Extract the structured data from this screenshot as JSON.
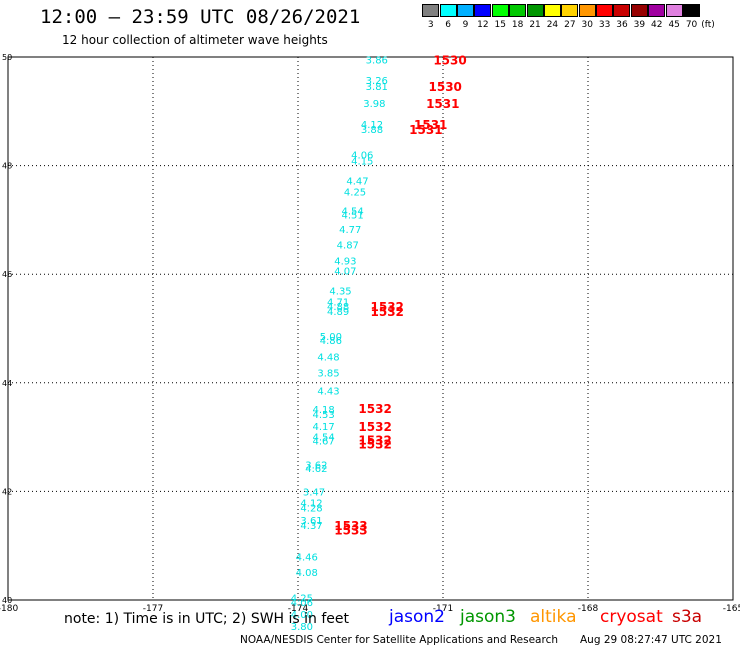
{
  "header": {
    "title": "12:00 — 23:59 UTC 08/26/2021",
    "subtitle": "12 hour collection of altimeter wave heights"
  },
  "legend": {
    "unit": "(ft)",
    "items": [
      {
        "label": "3",
        "color": "#808080"
      },
      {
        "label": "6",
        "color": "#00ffff"
      },
      {
        "label": "9",
        "color": "#00b0ff"
      },
      {
        "label": "12",
        "color": "#0000ff"
      },
      {
        "label": "15",
        "color": "#00ff00"
      },
      {
        "label": "18",
        "color": "#00c800"
      },
      {
        "label": "21",
        "color": "#009600"
      },
      {
        "label": "24",
        "color": "#ffff00"
      },
      {
        "label": "27",
        "color": "#ffd200"
      },
      {
        "label": "30",
        "color": "#ff9600"
      },
      {
        "label": "33",
        "color": "#ff0000"
      },
      {
        "label": "36",
        "color": "#c80000"
      },
      {
        "label": "39",
        "color": "#960000"
      },
      {
        "label": "42",
        "color": "#a000a0"
      },
      {
        "label": "45",
        "color": "#e080e0"
      },
      {
        "label": "70",
        "color": "#000000"
      }
    ]
  },
  "footer": {
    "note": "note: 1) Time is in UTC; 2) SWH is in feet",
    "satellites": [
      {
        "label": "jason2",
        "color": "#0000ff"
      },
      {
        "label": "jason3",
        "color": "#009600"
      },
      {
        "label": "altika",
        "color": "#ff9600"
      },
      {
        "label": "cryosat",
        "color": "#ff0000"
      },
      {
        "label": "s3a",
        "color": "#c80000"
      }
    ],
    "credit": "NOAA/NESDIS Center for Satellite Applications and Research",
    "timestamp": "Aug 29 08:27:47 UTC 2021"
  },
  "chart_data": {
    "type": "scatter",
    "title": "12:00 — 23:59 UTC 08/26/2021",
    "subtitle": "12 hour collection of altimeter wave heights",
    "xlim": [
      -180,
      -165
    ],
    "ylim": [
      40,
      50
    ],
    "x_ticks": [
      "-180",
      "-177",
      "-174",
      "-171",
      "-168",
      "-165"
    ],
    "y_ticks": [
      "40",
      "42",
      "44",
      "46",
      "48",
      "50"
    ],
    "grid": true,
    "swh_points": [
      {
        "lon": -172.6,
        "lat": 49.95,
        "value": "3.86"
      },
      {
        "lon": -172.6,
        "lat": 49.58,
        "value": "3.26"
      },
      {
        "lon": -172.6,
        "lat": 49.47,
        "value": "3.81"
      },
      {
        "lon": -172.65,
        "lat": 49.15,
        "value": "3.98"
      },
      {
        "lon": -172.7,
        "lat": 48.77,
        "value": "4.12"
      },
      {
        "lon": -172.7,
        "lat": 48.67,
        "value": "3.88"
      },
      {
        "lon": -172.9,
        "lat": 48.2,
        "value": "4.06"
      },
      {
        "lon": -172.9,
        "lat": 48.09,
        "value": "4.15"
      },
      {
        "lon": -173.0,
        "lat": 47.73,
        "value": "4.47"
      },
      {
        "lon": -173.05,
        "lat": 47.52,
        "value": "4.25"
      },
      {
        "lon": -173.1,
        "lat": 47.17,
        "value": "4.54"
      },
      {
        "lon": -173.1,
        "lat": 47.1,
        "value": "4.51"
      },
      {
        "lon": -173.15,
        "lat": 46.83,
        "value": "4.77"
      },
      {
        "lon": -173.2,
        "lat": 46.55,
        "value": "4.87"
      },
      {
        "lon": -173.25,
        "lat": 46.25,
        "value": "4.93"
      },
      {
        "lon": -173.25,
        "lat": 46.07,
        "value": "4.07"
      },
      {
        "lon": -173.35,
        "lat": 45.7,
        "value": "4.35"
      },
      {
        "lon": -173.4,
        "lat": 45.5,
        "value": "4.71"
      },
      {
        "lon": -173.4,
        "lat": 45.41,
        "value": "4.88"
      },
      {
        "lon": -173.4,
        "lat": 45.32,
        "value": "4.89"
      },
      {
        "lon": -173.55,
        "lat": 44.86,
        "value": "5.00"
      },
      {
        "lon": -173.55,
        "lat": 44.79,
        "value": "4.86"
      },
      {
        "lon": -173.6,
        "lat": 44.48,
        "value": "4.48"
      },
      {
        "lon": -173.6,
        "lat": 44.19,
        "value": "3.85"
      },
      {
        "lon": -173.6,
        "lat": 43.86,
        "value": "4.43"
      },
      {
        "lon": -173.7,
        "lat": 43.52,
        "value": "4.18"
      },
      {
        "lon": -173.7,
        "lat": 43.43,
        "value": "4.53"
      },
      {
        "lon": -173.7,
        "lat": 43.2,
        "value": "4.17"
      },
      {
        "lon": -173.7,
        "lat": 43.01,
        "value": "4.54"
      },
      {
        "lon": -173.7,
        "lat": 42.94,
        "value": "4.67"
      },
      {
        "lon": -173.85,
        "lat": 42.5,
        "value": "3.62"
      },
      {
        "lon": -173.85,
        "lat": 42.43,
        "value": "4.62"
      },
      {
        "lon": -173.9,
        "lat": 42.0,
        "value": "3.47"
      },
      {
        "lon": -173.95,
        "lat": 41.8,
        "value": "4.12"
      },
      {
        "lon": -173.95,
        "lat": 41.7,
        "value": "4.28"
      },
      {
        "lon": -173.95,
        "lat": 41.47,
        "value": "3.61"
      },
      {
        "lon": -173.95,
        "lat": 41.38,
        "value": "4.37"
      },
      {
        "lon": -174.05,
        "lat": 40.8,
        "value": "4.46"
      },
      {
        "lon": -174.05,
        "lat": 40.52,
        "value": "4.08"
      },
      {
        "lon": -174.15,
        "lat": 40.05,
        "value": "4.25"
      },
      {
        "lon": -174.15,
        "lat": 39.96,
        "value": "4.06"
      },
      {
        "lon": -174.15,
        "lat": 39.74,
        "value": "4.00"
      },
      {
        "lon": -174.15,
        "lat": 39.52,
        "value": "3.80"
      }
    ],
    "time_labels": [
      {
        "lon": -171.2,
        "lat": 49.95,
        "label": "1530"
      },
      {
        "lon": -171.3,
        "lat": 49.47,
        "label": "1530"
      },
      {
        "lon": -171.35,
        "lat": 49.15,
        "label": "1531"
      },
      {
        "lon": -171.6,
        "lat": 48.77,
        "label": "1531"
      },
      {
        "lon": -171.7,
        "lat": 48.67,
        "label": "1531"
      },
      {
        "lon": -172.5,
        "lat": 45.41,
        "label": "1532"
      },
      {
        "lon": -172.5,
        "lat": 45.32,
        "label": "1532"
      },
      {
        "lon": -172.75,
        "lat": 43.54,
        "label": "1532"
      },
      {
        "lon": -172.75,
        "lat": 43.2,
        "label": "1532"
      },
      {
        "lon": -172.75,
        "lat": 42.96,
        "label": "1532"
      },
      {
        "lon": -172.75,
        "lat": 42.88,
        "label": "1532"
      },
      {
        "lon": -173.25,
        "lat": 41.38,
        "label": "1533"
      },
      {
        "lon": -173.25,
        "lat": 41.3,
        "label": "1533"
      }
    ],
    "point_color": "#00e0e0",
    "label_color": "#ff0000"
  }
}
